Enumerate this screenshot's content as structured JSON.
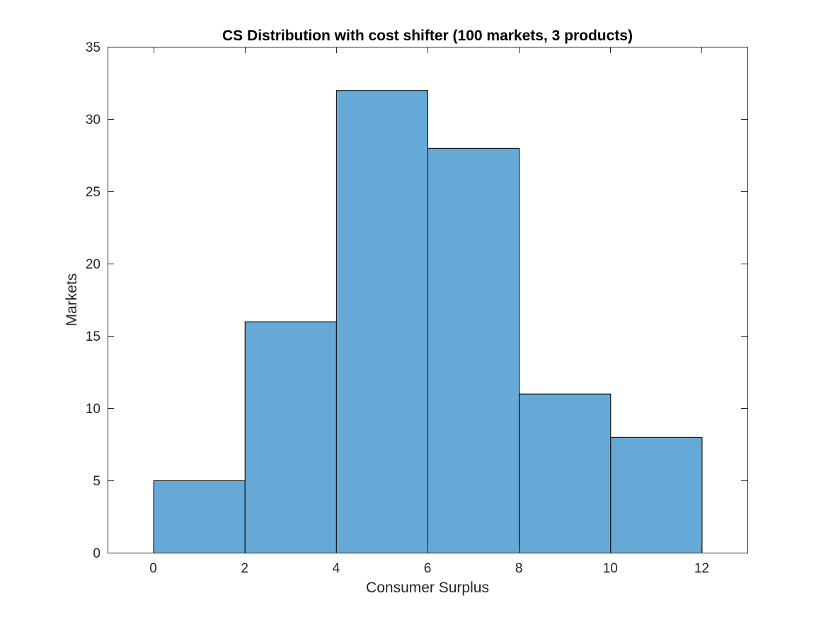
{
  "chart_data": {
    "type": "bar",
    "subtype": "histogram",
    "title": "CS Distribution with cost shifter (100 markets, 3 products)",
    "xlabel": "Consumer Surplus",
    "ylabel": "Markets",
    "bin_edges": [
      0,
      2,
      4,
      6,
      8,
      10,
      12
    ],
    "values": [
      5,
      16,
      32,
      28,
      11,
      8
    ],
    "xlim": [
      -1,
      13
    ],
    "ylim": [
      0,
      35
    ],
    "xticks": [
      0,
      2,
      4,
      6,
      8,
      10,
      12
    ],
    "yticks": [
      0,
      5,
      10,
      15,
      20,
      25,
      30,
      35
    ],
    "grid": false,
    "legend": "none",
    "box": true,
    "colors": {
      "bar_fill": "#66a8d6",
      "bar_edge": "#000000",
      "axis": "#262626"
    }
  }
}
